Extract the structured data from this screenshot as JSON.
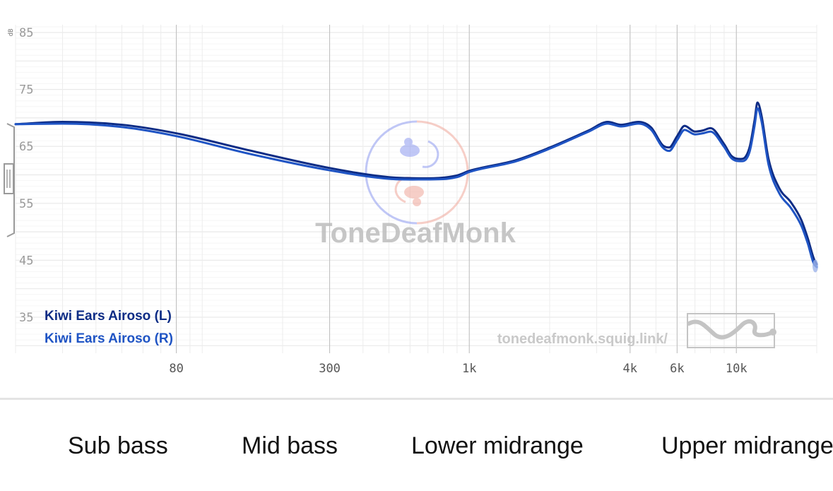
{
  "chart_data": {
    "type": "line",
    "ylabel": "dB",
    "ylim": [
      30,
      87
    ],
    "xlim": [
      20,
      20000
    ],
    "x_scale": "log",
    "y_ticks": [
      "85",
      "75",
      "65",
      "55",
      "45",
      "35"
    ],
    "y_tick_values": [
      85,
      75,
      65,
      55,
      45,
      35
    ],
    "x_ticks": [
      "80",
      "300",
      "1k",
      "4k",
      "6k",
      "10k"
    ],
    "x_tick_values": [
      80,
      300,
      1000,
      4000,
      6000,
      10000
    ],
    "grid": true,
    "legend_position": "bottom-left",
    "series": [
      {
        "name": "Kiwi Ears Airoso (L)",
        "color": "#0d2c85",
        "points": [
          [
            20,
            68.9
          ],
          [
            30,
            69.3
          ],
          [
            50,
            68.8
          ],
          [
            80,
            67.3
          ],
          [
            150,
            64.3
          ],
          [
            300,
            61.2
          ],
          [
            500,
            59.6
          ],
          [
            700,
            59.4
          ],
          [
            900,
            59.9
          ],
          [
            1000,
            60.7
          ],
          [
            1500,
            62.6
          ],
          [
            2000,
            64.8
          ],
          [
            2800,
            67.8
          ],
          [
            3300,
            69.3
          ],
          [
            3700,
            68.8
          ],
          [
            4300,
            69.3
          ],
          [
            4800,
            68.3
          ],
          [
            5300,
            65.2
          ],
          [
            5600,
            64.8
          ],
          [
            6000,
            66.8
          ],
          [
            6400,
            68.6
          ],
          [
            7000,
            67.6
          ],
          [
            7500,
            67.8
          ],
          [
            8000,
            68.2
          ],
          [
            9000,
            65.4
          ],
          [
            9600,
            63.3
          ],
          [
            10500,
            62.8
          ],
          [
            11200,
            64.8
          ],
          [
            11700,
            69.6
          ],
          [
            12000,
            72.7
          ],
          [
            12400,
            70.6
          ],
          [
            13200,
            62.8
          ],
          [
            14500,
            57.6
          ],
          [
            16000,
            55.2
          ],
          [
            17500,
            52.1
          ],
          [
            18500,
            48.9
          ],
          [
            19500,
            45.3
          ],
          [
            20000,
            44.3
          ]
        ]
      },
      {
        "name": "Kiwi Ears Airoso (R)",
        "color": "#1f54c4",
        "points": [
          [
            20,
            68.9
          ],
          [
            30,
            69.0
          ],
          [
            50,
            68.4
          ],
          [
            80,
            66.8
          ],
          [
            150,
            63.7
          ],
          [
            300,
            60.8
          ],
          [
            500,
            59.3
          ],
          [
            700,
            59.2
          ],
          [
            900,
            59.6
          ],
          [
            1000,
            60.5
          ],
          [
            1500,
            62.4
          ],
          [
            2000,
            64.6
          ],
          [
            2800,
            67.6
          ],
          [
            3300,
            69.0
          ],
          [
            3700,
            68.5
          ],
          [
            4300,
            69.0
          ],
          [
            4800,
            67.9
          ],
          [
            5300,
            64.8
          ],
          [
            5600,
            64.2
          ],
          [
            6000,
            66.1
          ],
          [
            6400,
            67.9
          ],
          [
            7000,
            67.1
          ],
          [
            7500,
            67.3
          ],
          [
            8000,
            67.6
          ],
          [
            9000,
            64.9
          ],
          [
            9600,
            62.9
          ],
          [
            10500,
            62.4
          ],
          [
            11200,
            64.0
          ],
          [
            11700,
            68.6
          ],
          [
            12000,
            71.7
          ],
          [
            12400,
            69.6
          ],
          [
            13200,
            61.8
          ],
          [
            14500,
            56.7
          ],
          [
            16000,
            54.2
          ],
          [
            17500,
            51.1
          ],
          [
            18500,
            48.0
          ],
          [
            19500,
            44.4
          ],
          [
            20000,
            43.8
          ]
        ]
      }
    ]
  },
  "watermark": {
    "brand": "ToneDeafMonk",
    "url": "tonedeafmonk.squig.link/"
  },
  "bands": [
    "Sub bass",
    "Mid bass",
    "Lower midrange",
    "Upper midrange"
  ]
}
